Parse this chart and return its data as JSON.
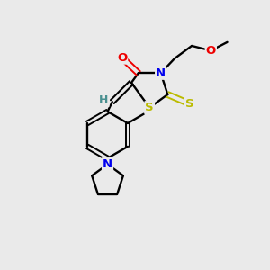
{
  "bg_color": "#eaeaea",
  "atom_colors": {
    "C": "#000000",
    "N": "#0000ee",
    "O": "#ee0000",
    "S": "#bbbb00",
    "H": "#4a9090"
  },
  "bond_color": "#000000"
}
